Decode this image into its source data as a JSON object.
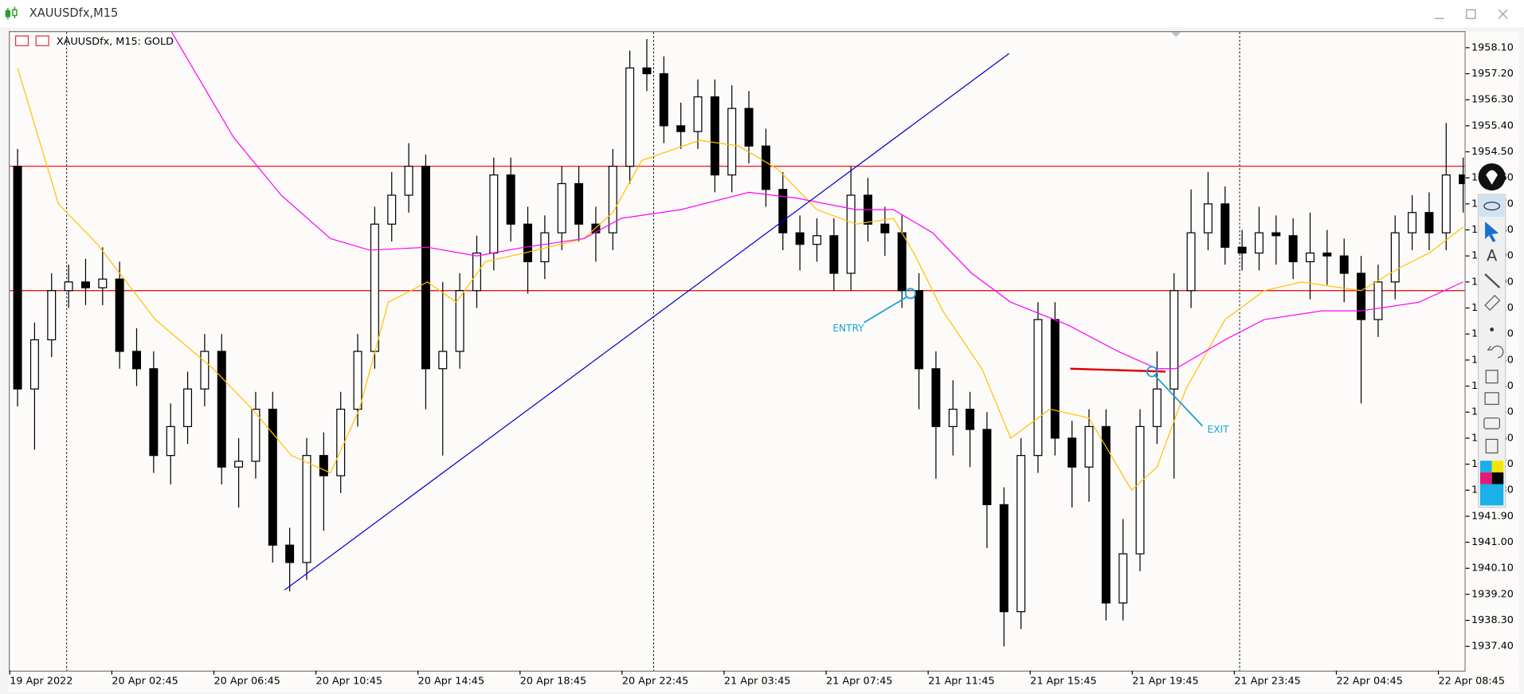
{
  "window": {
    "title": "XAUUSDfx,M15"
  },
  "chart_data": {
    "type": "candlestick",
    "title": "XAUUSDfx, M15:  GOLD",
    "categories": [
      "19 Apr 2022",
      null,
      null,
      null,
      null,
      null,
      "20 Apr 02:45",
      null,
      null,
      null,
      null,
      null,
      "20 Apr 06:45",
      null,
      null,
      null,
      null,
      null,
      "20 Apr 10:45",
      null,
      null,
      null,
      null,
      null,
      "20 Apr 14:45",
      null,
      null,
      null,
      null,
      null,
      "20 Apr 18:45",
      null,
      null,
      null,
      null,
      null,
      "20 Apr 22:45",
      null,
      null,
      null,
      null,
      null,
      "21 Apr 03:45",
      null,
      null,
      null,
      null,
      null,
      "21 Apr 07:45",
      null,
      null,
      null,
      null,
      null,
      "21 Apr 11:45",
      null,
      null,
      null,
      null,
      null,
      "21 Apr 15:45",
      null,
      null,
      null,
      null,
      null,
      "21 Apr 19:45",
      null,
      null,
      null,
      null,
      null,
      "21 Apr 23:45",
      null,
      null,
      null,
      null,
      null,
      "22 Apr 04:45",
      null,
      null,
      null,
      null,
      null,
      "22 Apr 08:45",
      null
    ],
    "open": [
      1954.0,
      1946.3,
      1948.0,
      1949.7,
      1950.0,
      1949.8,
      1950.1,
      1947.6,
      1947.0,
      1944.0,
      1945.0,
      1946.3,
      1947.6,
      1943.6,
      1943.8,
      1945.6,
      1940.9,
      1940.3,
      1944.0,
      1943.3,
      1945.6,
      1947.6,
      1952.0,
      1953.0,
      1954.0,
      1947.0,
      1947.6,
      1949.7,
      1951.0,
      1953.7,
      1952.0,
      1950.7,
      1951.7,
      1953.4,
      1952.0,
      1951.7,
      1954.0,
      1957.4,
      1957.2,
      1955.4,
      1955.2,
      1956.4,
      1953.7,
      1956.0,
      1954.7,
      1953.2,
      1951.7,
      1951.3,
      1951.6,
      1950.3,
      1953.0,
      1952.0,
      1951.7,
      1949.7,
      1947.0,
      1945.0,
      1945.6,
      1944.9,
      1942.3,
      1938.6,
      1944.0,
      1948.7,
      1944.6,
      1943.6,
      1945.0,
      1938.9,
      1940.6,
      1945.0,
      1946.3,
      1949.7,
      1951.7,
      1952.7,
      1951.2,
      1951.0,
      1951.7,
      1951.6,
      1950.7,
      1951.0,
      1950.9,
      1950.3,
      1948.7,
      1950.0,
      1951.7,
      1952.4,
      1951.7,
      1953.7
    ],
    "high": [
      1954.6,
      1948.6,
      1950.3,
      1950.6,
      1950.8,
      1951.2,
      1950.7,
      1948.4,
      1947.6,
      1945.8,
      1946.9,
      1948.2,
      1948.2,
      1944.6,
      1946.2,
      1946.2,
      1941.5,
      1944.6,
      1944.8,
      1946.2,
      1948.2,
      1952.6,
      1953.8,
      1954.8,
      1954.4,
      1950.0,
      1950.3,
      1951.6,
      1954.3,
      1954.3,
      1952.6,
      1952.3,
      1954.0,
      1954.0,
      1952.6,
      1954.6,
      1958.0,
      1958.4,
      1957.8,
      1956.2,
      1957.0,
      1957.0,
      1956.8,
      1956.6,
      1955.3,
      1953.8,
      1952.3,
      1952.2,
      1952.2,
      1954.0,
      1953.6,
      1952.6,
      1952.3,
      1950.3,
      1947.6,
      1946.6,
      1946.2,
      1945.5,
      1942.9,
      1944.6,
      1949.3,
      1949.3,
      1945.2,
      1945.6,
      1945.6,
      1941.8,
      1945.6,
      1947.6,
      1950.3,
      1953.2,
      1953.8,
      1953.3,
      1951.8,
      1952.6,
      1952.3,
      1952.2,
      1952.4,
      1951.8,
      1951.5,
      1950.9,
      1950.6,
      1952.3,
      1953.0,
      1953.1,
      1955.5,
      1954.3
    ],
    "low": [
      1945.7,
      1944.2,
      1947.4,
      1949.1,
      1949.2,
      1949.2,
      1947.0,
      1946.4,
      1943.4,
      1943.0,
      1944.4,
      1945.7,
      1943.0,
      1942.2,
      1943.2,
      1940.3,
      1939.3,
      1939.7,
      1941.4,
      1942.7,
      1945.0,
      1947.0,
      1951.4,
      1952.4,
      1945.6,
      1944.0,
      1947.0,
      1949.1,
      1950.4,
      1951.4,
      1949.6,
      1950.1,
      1951.1,
      1951.4,
      1950.7,
      1951.1,
      1953.4,
      1956.6,
      1954.8,
      1954.6,
      1954.6,
      1953.1,
      1953.1,
      1954.1,
      1952.6,
      1951.1,
      1950.4,
      1950.7,
      1949.7,
      1949.7,
      1951.4,
      1950.9,
      1949.1,
      1945.6,
      1943.2,
      1944.0,
      1943.6,
      1940.8,
      1937.4,
      1938.0,
      1943.4,
      1944.0,
      1942.2,
      1942.4,
      1938.3,
      1938.3,
      1940.0,
      1944.4,
      1943.2,
      1949.1,
      1951.1,
      1950.6,
      1950.4,
      1950.4,
      1950.6,
      1950.1,
      1949.4,
      1949.9,
      1949.3,
      1945.8,
      1948.1,
      1949.4,
      1951.1,
      1951.1,
      1951.1,
      1952.4
    ],
    "close": [
      1946.3,
      1948.0,
      1949.7,
      1950.0,
      1949.8,
      1950.1,
      1947.6,
      1947.0,
      1944.0,
      1945.0,
      1946.3,
      1947.6,
      1943.6,
      1943.8,
      1945.6,
      1940.9,
      1940.3,
      1944.0,
      1943.3,
      1945.6,
      1947.6,
      1952.0,
      1953.0,
      1954.0,
      1947.0,
      1947.6,
      1949.7,
      1951.0,
      1953.7,
      1952.0,
      1950.7,
      1951.7,
      1953.4,
      1952.0,
      1951.7,
      1954.0,
      1957.4,
      1957.2,
      1955.4,
      1955.2,
      1956.4,
      1953.7,
      1956.0,
      1954.7,
      1953.2,
      1951.7,
      1951.3,
      1951.6,
      1950.3,
      1953.0,
      1952.0,
      1951.7,
      1949.7,
      1947.0,
      1945.0,
      1945.6,
      1944.9,
      1942.3,
      1938.6,
      1944.0,
      1948.7,
      1944.6,
      1943.6,
      1945.0,
      1938.9,
      1940.6,
      1945.0,
      1946.3,
      1949.7,
      1951.7,
      1952.7,
      1951.2,
      1951.0,
      1951.7,
      1951.6,
      1950.7,
      1951.0,
      1950.9,
      1950.3,
      1948.7,
      1950.0,
      1951.7,
      1952.4,
      1951.7,
      1953.7,
      1953.4
    ],
    "up_color": "#ffffff",
    "down_color": "#000000",
    "edge_color": "#000000",
    "ylim": [
      1936.56,
      1958.64
    ],
    "yticks": [
      {
        "value": 1958.1,
        "label": "1958.10"
      },
      {
        "value": 1957.2,
        "label": "1957.20"
      },
      {
        "value": 1956.3,
        "label": "1956.30"
      },
      {
        "value": 1955.4,
        "label": "1955.40"
      },
      {
        "value": 1954.5,
        "label": "1954.50"
      },
      {
        "value": 1953.6,
        "label": "1953.60"
      },
      {
        "value": 1952.7,
        "label": "1952.70"
      },
      {
        "value": 1951.8,
        "label": "1951.80"
      },
      {
        "value": 1950.9,
        "label": "1950.90"
      },
      {
        "value": 1950,
        "label": "1950.00"
      },
      {
        "value": 1949.1,
        "label": "1949.10"
      },
      {
        "value": 1948.2,
        "label": "1948.20"
      },
      {
        "value": 1947.3,
        "label": "1947.30"
      },
      {
        "value": 1946.4,
        "label": "1946.40"
      },
      {
        "value": 1945.5,
        "label": "1945.50"
      },
      {
        "value": 1944.6,
        "label": "1944.60"
      },
      {
        "value": 1943.7,
        "label": "1943.70"
      },
      {
        "value": 1942.8,
        "label": "1942.80"
      },
      {
        "value": 1941.9,
        "label": "1941.90"
      },
      {
        "value": 1941,
        "label": "1941.00"
      },
      {
        "value": 1940.1,
        "label": "1940.10"
      },
      {
        "value": 1939.2,
        "label": "1939.20"
      },
      {
        "value": 1938.3,
        "label": "1938.30"
      },
      {
        "value": 1937.4,
        "label": "1937.40"
      }
    ],
    "lines": [
      {
        "color": "#ffc000",
        "x": [
          0,
          2.4,
          4.7,
          8.1,
          11.5,
          13.8,
          16.1,
          18.4,
          20.1,
          21.8,
          24.1,
          25.8,
          27.5,
          29.8,
          33.3,
          35.0,
          36.7,
          40.1,
          42.4,
          44.7,
          47.0,
          49.3,
          51.5,
          52.7,
          54.4,
          56.7,
          58.4,
          60.7,
          63.0,
          65.5,
          67.0,
          68.7,
          71.0,
          73.3,
          75.5,
          77.8,
          79.0,
          81.3,
          83.0,
          85.0
        ],
        "values": [
          1957.4,
          1952.7,
          1951.3,
          1948.7,
          1947.0,
          1945.6,
          1944.0,
          1943.4,
          1945.6,
          1949.3,
          1950.0,
          1949.3,
          1950.7,
          1951.0,
          1951.5,
          1952.4,
          1954.2,
          1954.9,
          1954.7,
          1953.9,
          1952.5,
          1952.0,
          1952.2,
          1951.0,
          1949.0,
          1947.0,
          1944.6,
          1945.6,
          1945.3,
          1942.8,
          1943.6,
          1946.3,
          1948.7,
          1949.7,
          1950.0,
          1949.8,
          1949.7,
          1950.5,
          1951.0,
          1951.9
        ]
      },
      {
        "color": "#ff00ff",
        "x": [
          9.0,
          12.7,
          15.5,
          18.4,
          20.7,
          24.1,
          27.0,
          29.8,
          33.3,
          35.5,
          39.0,
          43.0,
          45.8,
          49.3,
          51.5,
          53.8,
          56.1,
          58.4,
          61.8,
          64.7,
          67.0,
          68.1,
          71.0,
          73.3,
          76.7,
          79.0,
          82.4,
          85.0
        ],
        "values": [
          1958.7,
          1955.0,
          1953.0,
          1951.5,
          1951.1,
          1951.2,
          1950.9,
          1951.2,
          1951.5,
          1952.2,
          1952.5,
          1953.1,
          1952.9,
          1952.5,
          1952.5,
          1951.7,
          1950.3,
          1949.3,
          1948.5,
          1947.6,
          1947.0,
          1947.0,
          1948.0,
          1948.7,
          1949.0,
          1949.0,
          1949.3,
          1950.0
        ]
      }
    ],
    "hlines": [
      {
        "value": 1954.0,
        "color": "#e00000"
      },
      {
        "value": 1949.7,
        "color": "#e00000"
      }
    ],
    "trendline": {
      "x": [
        15.7,
        58.3
      ],
      "values": [
        1939.35,
        1957.9
      ],
      "color": "#0000cc"
    },
    "segment": {
      "x": [
        61.9,
        67.5
      ],
      "values": [
        1947.0,
        1946.9
      ],
      "color": "#e00000"
    },
    "annotations": [
      {
        "text": "ENTRY",
        "x": 52.5,
        "value": 1949.6,
        "color": "#1aa3d9"
      },
      {
        "text": "EXIT",
        "x": 66.7,
        "value": 1946.9,
        "color": "#1aa3d9"
      }
    ]
  }
}
